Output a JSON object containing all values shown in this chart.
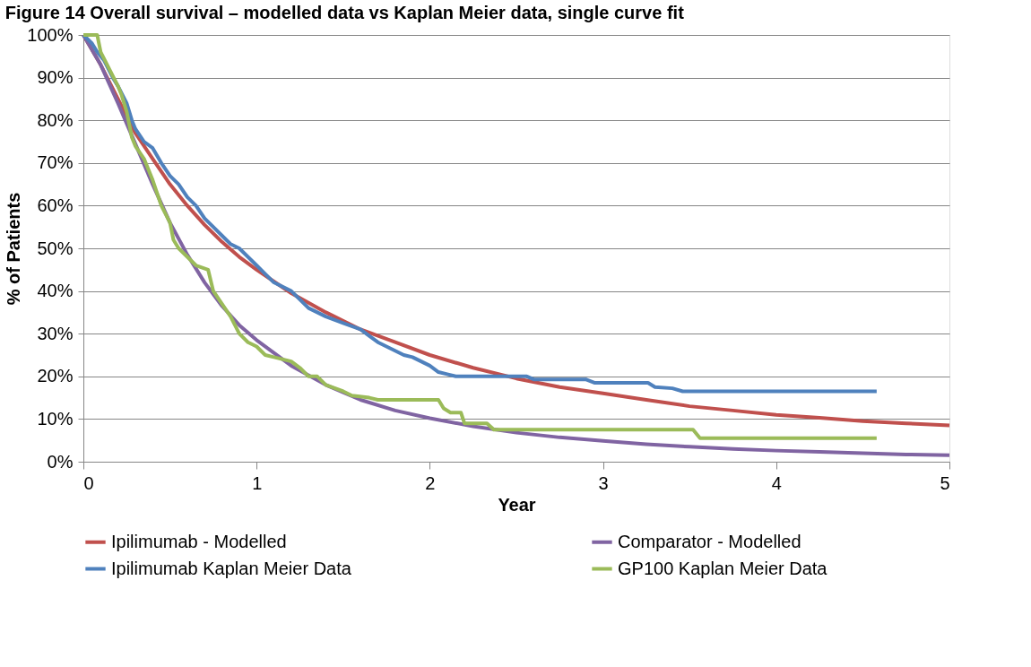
{
  "chart_data": {
    "type": "line",
    "title": "Figure 14       Overall survival – modelled data vs Kaplan Meier data, single curve fit",
    "xlabel": "Year",
    "ylabel": "% of Patients",
    "xlim": [
      0,
      5
    ],
    "xticks": [
      0,
      1,
      2,
      3,
      4,
      5
    ],
    "ylim": [
      0,
      100
    ],
    "yticks": [
      {
        "value": 0,
        "label": "0%"
      },
      {
        "value": 10,
        "label": "10%"
      },
      {
        "value": 20,
        "label": "20%"
      },
      {
        "value": 30,
        "label": "30%"
      },
      {
        "value": 40,
        "label": "40%"
      },
      {
        "value": 50,
        "label": "50%"
      },
      {
        "value": 60,
        "label": "60%"
      },
      {
        "value": 70,
        "label": "70%"
      },
      {
        "value": 80,
        "label": "80%"
      },
      {
        "value": 90,
        "label": "90%"
      },
      {
        "value": 100,
        "label": "100%"
      }
    ],
    "grid": "y",
    "legend": "bottom",
    "marker": "none",
    "line_style": "solid",
    "series": [
      {
        "name": "Ipilimumab - Modelled",
        "color": "#c0504d",
        "x": [
          0,
          0.1,
          0.2,
          0.3,
          0.4,
          0.5,
          0.6,
          0.7,
          0.8,
          0.9,
          1,
          1.2,
          1.4,
          1.6,
          1.8,
          2,
          2.25,
          2.5,
          2.75,
          3,
          3.25,
          3.5,
          3.75,
          4,
          4.25,
          4.5,
          4.75,
          5
        ],
        "values": [
          100,
          93,
          85,
          77,
          71,
          65,
          60,
          55.5,
          51.5,
          48,
          45,
          39.5,
          35,
          31,
          28,
          25,
          22,
          19.5,
          17.5,
          16,
          14.5,
          13,
          12,
          11,
          10.3,
          9.5,
          9,
          8.5
        ]
      },
      {
        "name": "Comparator - Modelled",
        "color": "#8064a2",
        "x": [
          0,
          0.1,
          0.2,
          0.3,
          0.4,
          0.5,
          0.6,
          0.7,
          0.8,
          0.9,
          1,
          1.2,
          1.4,
          1.6,
          1.8,
          2,
          2.25,
          2.5,
          2.75,
          3,
          3.25,
          3.5,
          3.75,
          4,
          4.25,
          4.5,
          4.75,
          5
        ],
        "values": [
          100,
          93,
          84,
          74.5,
          65,
          56,
          48.5,
          42,
          36.5,
          32,
          28.5,
          22.5,
          18,
          14.5,
          12,
          10.2,
          8.3,
          6.8,
          5.7,
          4.9,
          4.1,
          3.5,
          3,
          2.6,
          2.3,
          2,
          1.7,
          1.5
        ]
      },
      {
        "name": "Ipilimumab Kaplan Meier Data",
        "color": "#4f81bd",
        "x": [
          0,
          0.05,
          0.08,
          0.12,
          0.17,
          0.2,
          0.25,
          0.28,
          0.3,
          0.35,
          0.4,
          0.45,
          0.5,
          0.55,
          0.6,
          0.65,
          0.7,
          0.75,
          0.8,
          0.85,
          0.9,
          0.95,
          1,
          1.05,
          1.1,
          1.2,
          1.25,
          1.3,
          1.4,
          1.5,
          1.6,
          1.65,
          1.7,
          1.75,
          1.8,
          1.85,
          1.9,
          1.95,
          2,
          2.05,
          2.1,
          2.15,
          2.56,
          2.6,
          2.9,
          2.95,
          3.26,
          3.3,
          3.4,
          3.46,
          4.58
        ],
        "values": [
          100,
          98,
          96,
          94,
          90,
          88,
          84,
          80,
          78,
          75,
          73.5,
          70,
          67,
          65,
          62,
          60,
          57,
          55,
          53,
          51,
          50,
          48,
          46,
          44,
          42,
          40,
          38,
          36,
          34,
          32.5,
          31,
          29.5,
          28,
          27,
          26,
          25,
          24.5,
          23.5,
          22.5,
          21,
          20.5,
          20,
          20,
          19.3,
          19.3,
          18.5,
          18.5,
          17.5,
          17.2,
          16.5,
          16.5
        ]
      },
      {
        "name": "GP100 Kaplan Meier Data",
        "color": "#9bbb59",
        "x": [
          0,
          0.08,
          0.1,
          0.15,
          0.2,
          0.22,
          0.25,
          0.28,
          0.3,
          0.35,
          0.4,
          0.45,
          0.5,
          0.52,
          0.55,
          0.6,
          0.65,
          0.72,
          0.75,
          0.8,
          0.85,
          0.9,
          0.95,
          1,
          1.05,
          1.1,
          1.2,
          1.25,
          1.3,
          1.35,
          1.4,
          1.5,
          1.55,
          1.65,
          1.7,
          2.05,
          2.08,
          2.12,
          2.18,
          2.2,
          2.33,
          2.37,
          3.52,
          3.56,
          4.58
        ],
        "values": [
          100,
          100,
          96,
          92,
          88,
          86,
          82,
          76,
          74,
          71,
          66,
          60,
          56,
          52,
          50,
          48,
          46,
          45,
          40,
          37,
          34,
          30,
          28,
          27,
          25,
          24.5,
          23.5,
          22,
          20,
          20,
          18,
          16.5,
          15.5,
          15,
          14.5,
          14.5,
          12.5,
          11.5,
          11.5,
          9,
          9,
          7.5,
          7.5,
          5.5,
          5.5
        ]
      }
    ]
  }
}
